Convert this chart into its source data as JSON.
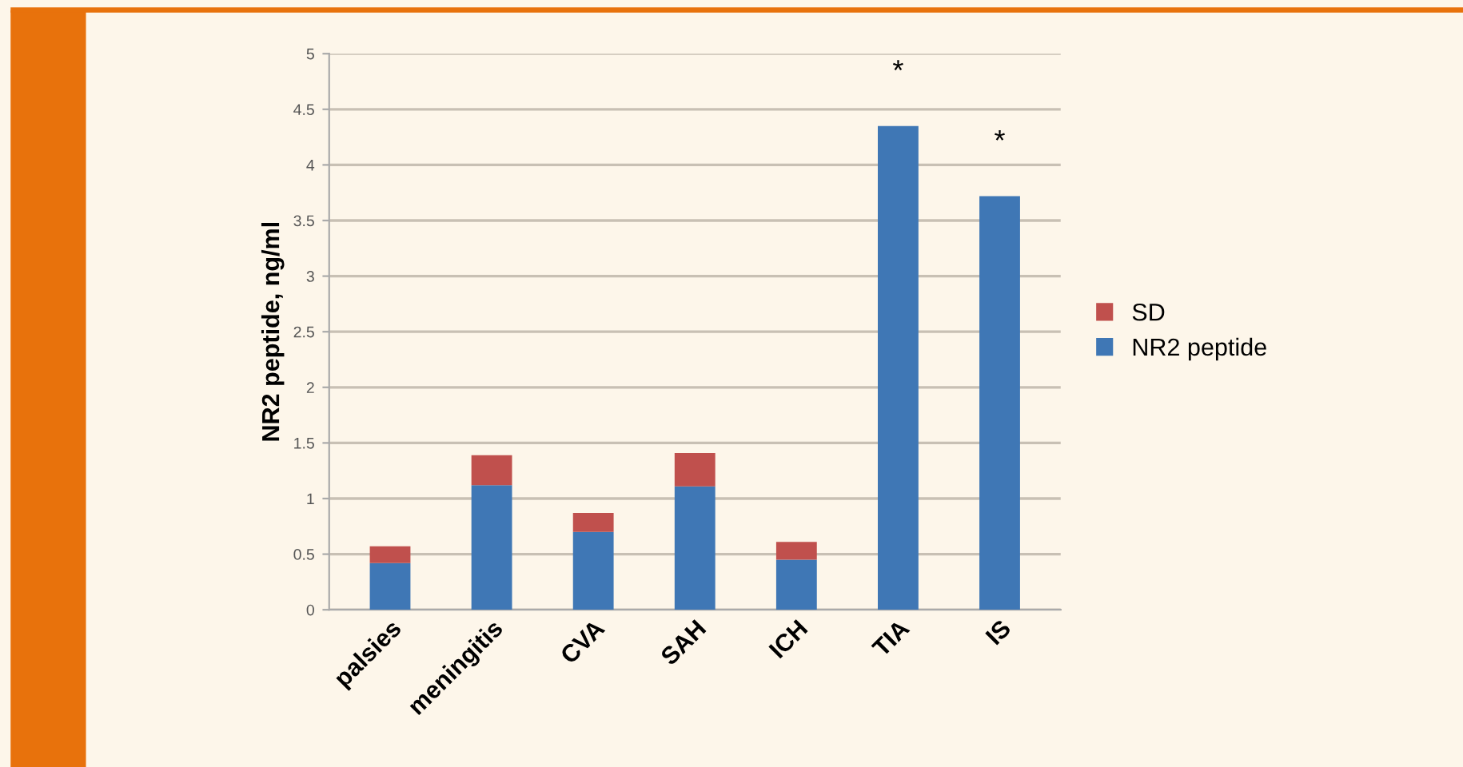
{
  "chart_data": {
    "type": "bar",
    "stacked": true,
    "ylabel": "NR2 peptide, ng/ml",
    "categories": [
      "palsies",
      "meningitis",
      "CVA",
      "SAH",
      "ICH",
      "TIA",
      "IS"
    ],
    "series": [
      {
        "name": "NR2 peptide",
        "color": "#3f77b5",
        "values": [
          0.42,
          1.12,
          0.7,
          1.11,
          0.45,
          4.35,
          3.72
        ]
      },
      {
        "name": "SD",
        "color": "#c0504d",
        "values": [
          0.15,
          0.27,
          0.17,
          0.3,
          0.16,
          null,
          null
        ]
      }
    ],
    "ylim": [
      0,
      5
    ],
    "yticks": [
      0,
      0.5,
      1,
      1.5,
      2,
      2.5,
      3,
      3.5,
      4,
      4.5,
      5
    ],
    "grid": "y",
    "legend": "right",
    "annotations": [
      "*",
      "*"
    ]
  }
}
